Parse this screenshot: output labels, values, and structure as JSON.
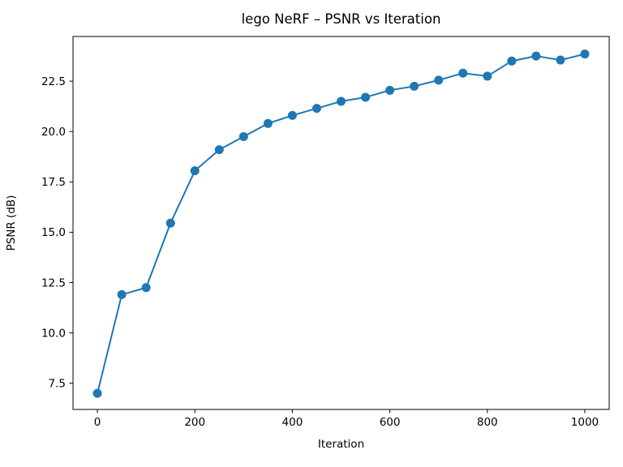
{
  "figure": {
    "background": "#ffffff",
    "text_color": "#000000"
  },
  "chart_data": {
    "type": "line",
    "title": "lego NeRF – PSNR vs Iteration",
    "xlabel": "Iteration",
    "ylabel": "PSNR (dB)",
    "x": [
      0,
      50,
      100,
      150,
      200,
      250,
      300,
      350,
      400,
      450,
      500,
      550,
      600,
      650,
      700,
      750,
      800,
      850,
      900,
      950,
      1000
    ],
    "y": [
      7.0,
      11.9,
      12.25,
      15.45,
      18.05,
      19.1,
      19.75,
      20.4,
      20.8,
      21.15,
      21.5,
      21.7,
      22.05,
      22.25,
      22.55,
      22.9,
      22.75,
      23.5,
      23.75,
      23.55,
      23.85
    ],
    "series_name": "PSNR",
    "xlim": [
      -50,
      1050
    ],
    "ylim": [
      6.2,
      24.72
    ],
    "xticks": [
      0,
      200,
      400,
      600,
      800,
      1000
    ],
    "xtick_labels": [
      "0",
      "200",
      "400",
      "600",
      "800",
      "1000"
    ],
    "yticks": [
      7.5,
      10.0,
      12.5,
      15.0,
      17.5,
      20.0,
      22.5
    ],
    "ytick_labels": [
      "7.5",
      "10.0",
      "12.5",
      "15.0",
      "17.5",
      "20.0",
      "22.5"
    ],
    "grid": "off",
    "legend": "none",
    "line_color": "#1f77b4",
    "marker": "circle",
    "marker_color": "#1f77b4",
    "spine_color": "#000000"
  }
}
